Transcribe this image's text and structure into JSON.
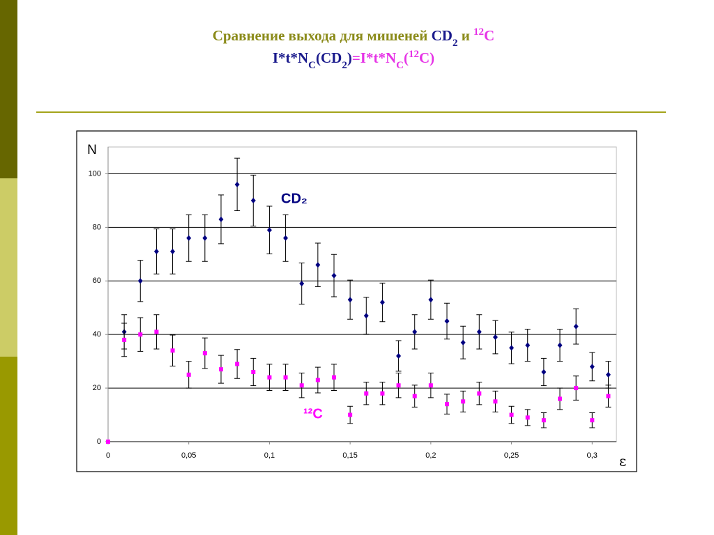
{
  "chart_data": {
    "type": "scatter",
    "title": [
      [
        {
          "text": "Сравнение выхода для мишеней ",
          "color": "#8b8b1a"
        },
        {
          "text": "CD",
          "color": "#1a1a8c"
        },
        {
          "text": "2",
          "color": "#1a1a8c",
          "shift": "sub"
        },
        {
          "text": " и ",
          "color": "#8b8b1a"
        },
        {
          "text": "12",
          "color": "#e633e6",
          "shift": "super"
        },
        {
          "text": "C",
          "color": "#e633e6"
        }
      ],
      [
        {
          "text": "I*t*N",
          "color": "#1a1a8c"
        },
        {
          "text": "C",
          "color": "#1a1a8c",
          "shift": "sub"
        },
        {
          "text": "(CD",
          "color": "#1a1a8c"
        },
        {
          "text": "2",
          "color": "#1a1a8c",
          "shift": "sub"
        },
        {
          "text": ")",
          "color": "#1a1a8c"
        },
        {
          "text": "=I*t*N",
          "color": "#e633e6"
        },
        {
          "text": "C",
          "color": "#e633e6",
          "shift": "sub"
        },
        {
          "text": "(",
          "color": "#e633e6"
        },
        {
          "text": "12",
          "color": "#e633e6",
          "shift": "super"
        },
        {
          "text": "C)",
          "color": "#e633e6"
        }
      ]
    ],
    "x_label": "ε",
    "y_label": "N",
    "xlim": [
      0,
      0.315
    ],
    "ylim": [
      0,
      110
    ],
    "xticks": [
      0,
      {
        "value": 0.05,
        "label": "0,05"
      },
      {
        "value": 0.1,
        "label": "0,1"
      },
      {
        "value": 0.15,
        "label": "0,15"
      },
      {
        "value": 0.2,
        "label": "0,2"
      },
      {
        "value": 0.25,
        "label": "0,25"
      },
      {
        "value": 0.3,
        "label": "0,3"
      }
    ],
    "yticks": [
      0,
      20,
      40,
      60,
      80,
      100
    ],
    "grid": true,
    "series": [
      {
        "name": "CD₂",
        "color": "#000080",
        "marker": "diamond",
        "x": [
          0.01,
          0.02,
          0.03,
          0.04,
          0.05,
          0.06,
          0.07,
          0.08,
          0.09,
          0.1,
          0.11,
          0.12,
          0.13,
          0.14,
          0.15,
          0.16,
          0.17,
          0.18,
          0.19,
          0.2,
          0.21,
          0.22,
          0.23,
          0.24,
          0.25,
          0.26,
          0.27,
          0.28,
          0.29,
          0.3,
          0.31
        ],
        "values": [
          41,
          60,
          71,
          71,
          76,
          76,
          83,
          96,
          90,
          79,
          76,
          59,
          66,
          62,
          53,
          47,
          52,
          32,
          41,
          53,
          45,
          37,
          41,
          39,
          35,
          36,
          26,
          36,
          43,
          28,
          25
        ],
        "errors": [
          6.4,
          7.7,
          8.4,
          8.4,
          8.7,
          8.7,
          9.1,
          9.8,
          9.5,
          8.9,
          8.7,
          7.7,
          8.1,
          7.9,
          7.3,
          6.9,
          7.2,
          5.7,
          6.4,
          7.3,
          6.7,
          6.1,
          6.4,
          6.2,
          5.9,
          6,
          5.1,
          6,
          6.6,
          5.3,
          5
        ]
      },
      {
        "name": "¹²C",
        "color": "#ff00ff",
        "marker": "square",
        "x": [
          0,
          0.01,
          0.02,
          0.03,
          0.04,
          0.05,
          0.06,
          0.07,
          0.08,
          0.09,
          0.1,
          0.11,
          0.12,
          0.13,
          0.14,
          0.15,
          0.16,
          0.17,
          0.18,
          0.19,
          0.2,
          0.21,
          0.22,
          0.23,
          0.24,
          0.25,
          0.26,
          0.27,
          0.28,
          0.29,
          0.3,
          0.31
        ],
        "values": [
          0,
          38,
          40,
          41,
          34,
          25,
          33,
          27,
          29,
          26,
          24,
          24,
          21,
          23,
          24,
          10,
          18,
          18,
          21,
          17,
          21,
          14,
          15,
          18,
          15,
          10,
          9,
          8,
          16,
          20,
          8,
          17
        ],
        "errors": [
          null,
          6.2,
          6.3,
          6.4,
          5.8,
          5,
          5.7,
          5.2,
          5.4,
          5.1,
          4.9,
          4.9,
          4.6,
          4.8,
          4.9,
          3.2,
          4.2,
          4.2,
          4.6,
          4.1,
          4.6,
          3.7,
          3.9,
          4.2,
          3.9,
          3.2,
          3,
          2.8,
          4,
          4.5,
          2.8,
          4.1
        ]
      }
    ]
  }
}
